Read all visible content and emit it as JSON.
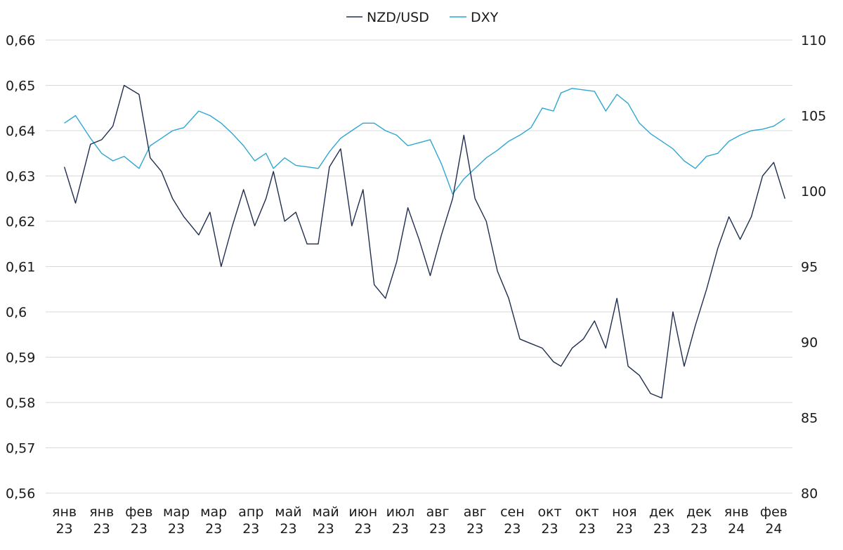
{
  "chart_data": {
    "type": "line",
    "title": "",
    "legend": {
      "position": "top-center"
    },
    "grid": true,
    "x_ticks": [
      [
        "янв",
        "23"
      ],
      [
        "янв",
        "23"
      ],
      [
        "фев",
        "23"
      ],
      [
        "мар",
        "23"
      ],
      [
        "мар",
        "23"
      ],
      [
        "апр",
        "23"
      ],
      [
        "май",
        "23"
      ],
      [
        "май",
        "23"
      ],
      [
        "июн",
        "23"
      ],
      [
        "июл",
        "23"
      ],
      [
        "авг",
        "23"
      ],
      [
        "авг",
        "23"
      ],
      [
        "сен",
        "23"
      ],
      [
        "окт",
        "23"
      ],
      [
        "окт",
        "23"
      ],
      [
        "ноя",
        "23"
      ],
      [
        "дек",
        "23"
      ],
      [
        "дек",
        "23"
      ],
      [
        "янв",
        "24"
      ],
      [
        "фев",
        "24"
      ]
    ],
    "y_left": {
      "ylim": [
        0.56,
        0.66
      ],
      "ticks": [
        "0,56",
        "0,57",
        "0,58",
        "0,59",
        "0,6",
        "0,61",
        "0,62",
        "0,63",
        "0,64",
        "0,65",
        "0,66"
      ]
    },
    "y_right": {
      "ylim": [
        80,
        110
      ],
      "ticks": [
        "80",
        "85",
        "90",
        "95",
        "100",
        "105",
        "110"
      ]
    },
    "series": [
      {
        "name": "NZD/USD",
        "axis": "left",
        "color": "#1f2d4e",
        "x": [
          0.0,
          0.3,
          0.7,
          1.0,
          1.3,
          1.6,
          2.0,
          2.3,
          2.6,
          2.9,
          3.2,
          3.6,
          3.9,
          4.2,
          4.5,
          4.8,
          5.1,
          5.4,
          5.6,
          5.9,
          6.2,
          6.5,
          6.8,
          7.1,
          7.4,
          7.7,
          8.0,
          8.3,
          8.6,
          8.9,
          9.2,
          9.5,
          9.8,
          10.1,
          10.4,
          10.7,
          11.0,
          11.3,
          11.6,
          11.9,
          12.2,
          12.5,
          12.8,
          13.1,
          13.3,
          13.6,
          13.9,
          14.2,
          14.5,
          14.8,
          15.1,
          15.4,
          15.7,
          16.0,
          16.3,
          16.6,
          16.9,
          17.2,
          17.5,
          17.8,
          18.1,
          18.4,
          18.7,
          19.0,
          19.3
        ],
        "values": [
          0.632,
          0.624,
          0.637,
          0.638,
          0.641,
          0.65,
          0.648,
          0.634,
          0.631,
          0.625,
          0.621,
          0.617,
          0.622,
          0.61,
          0.619,
          0.627,
          0.619,
          0.625,
          0.631,
          0.62,
          0.622,
          0.615,
          0.615,
          0.632,
          0.636,
          0.619,
          0.627,
          0.606,
          0.603,
          0.611,
          0.623,
          0.616,
          0.608,
          0.617,
          0.625,
          0.639,
          0.625,
          0.62,
          0.609,
          0.603,
          0.594,
          0.593,
          0.592,
          0.589,
          0.588,
          0.592,
          0.594,
          0.598,
          0.592,
          0.603,
          0.588,
          0.586,
          0.582,
          0.581,
          0.6,
          0.588,
          0.597,
          0.605,
          0.614,
          0.621,
          0.616,
          0.621,
          0.63,
          0.633,
          0.625
        ]
      },
      {
        "name": "DXY",
        "axis": "right",
        "color": "#2ea7d1",
        "x": [
          0.0,
          0.3,
          0.7,
          1.0,
          1.3,
          1.6,
          2.0,
          2.3,
          2.6,
          2.9,
          3.2,
          3.6,
          3.9,
          4.2,
          4.5,
          4.8,
          5.1,
          5.4,
          5.6,
          5.9,
          6.2,
          6.5,
          6.8,
          7.1,
          7.4,
          7.7,
          8.0,
          8.3,
          8.6,
          8.9,
          9.2,
          9.5,
          9.8,
          10.1,
          10.4,
          10.7,
          11.0,
          11.3,
          11.6,
          11.9,
          12.2,
          12.5,
          12.8,
          13.1,
          13.3,
          13.6,
          13.9,
          14.2,
          14.5,
          14.8,
          15.1,
          15.4,
          15.7,
          16.0,
          16.3,
          16.6,
          16.9,
          17.2,
          17.5,
          17.8,
          18.1,
          18.4,
          18.7,
          19.0,
          19.3
        ],
        "values": [
          104.5,
          105.0,
          103.5,
          102.5,
          102.0,
          102.3,
          101.5,
          103.0,
          103.5,
          104.0,
          104.2,
          105.3,
          105.0,
          104.5,
          103.8,
          103.0,
          102.0,
          102.5,
          101.5,
          102.2,
          101.7,
          101.6,
          101.5,
          102.6,
          103.5,
          104.0,
          104.5,
          104.5,
          104.0,
          103.7,
          103.0,
          103.2,
          103.4,
          101.8,
          99.8,
          100.8,
          101.5,
          102.2,
          102.7,
          103.3,
          103.7,
          104.2,
          105.5,
          105.3,
          106.5,
          106.8,
          106.7,
          106.6,
          105.3,
          106.4,
          105.8,
          104.5,
          103.8,
          103.3,
          102.8,
          102.0,
          101.5,
          102.3,
          102.5,
          103.3,
          103.7,
          104.0,
          104.1,
          104.3,
          104.8
        ]
      }
    ]
  }
}
